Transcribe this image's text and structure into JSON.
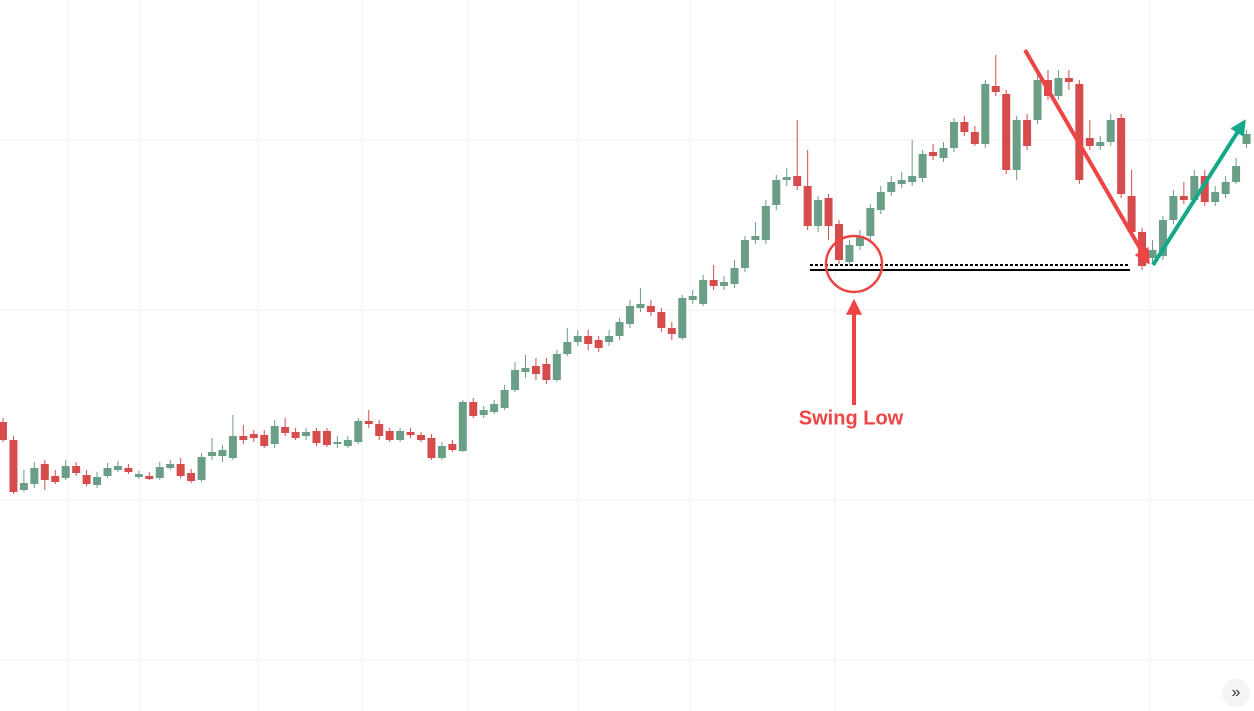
{
  "chart_data": {
    "type": "candlestick",
    "up_color": "#6a9e86",
    "down_color": "#d64b4b",
    "ylim": [
      0,
      711
    ],
    "categories": [
      null,
      null,
      null,
      null,
      null,
      null,
      null,
      null,
      null,
      null,
      null,
      null,
      null,
      null,
      null,
      null,
      null,
      null,
      null,
      null,
      null,
      null,
      null,
      null,
      null,
      null,
      null,
      null,
      null,
      null,
      null,
      null,
      null,
      null,
      null,
      null,
      null,
      null,
      null,
      null,
      null,
      null,
      null,
      null,
      null,
      null,
      null,
      null,
      null,
      null,
      null,
      null,
      null,
      null,
      null,
      null,
      null,
      null,
      null,
      null,
      null,
      null,
      null,
      null,
      null,
      null,
      null,
      null,
      null,
      null,
      null,
      null,
      null,
      null,
      null,
      null,
      null,
      null,
      null,
      null,
      null,
      null,
      null,
      null,
      null,
      null,
      null,
      null,
      null,
      null,
      null,
      null,
      null,
      null,
      null,
      null,
      null,
      null,
      null,
      null,
      null,
      null,
      null,
      null,
      null,
      null,
      null,
      null,
      null,
      null,
      null,
      null,
      null,
      null,
      null,
      null,
      null,
      null,
      null,
      null
    ],
    "open": [
      289,
      271,
      221,
      227,
      247,
      235,
      233,
      245,
      236,
      226,
      235,
      241,
      243,
      234,
      235,
      233,
      243,
      247,
      238,
      231,
      255,
      255,
      253,
      275,
      277,
      276,
      267,
      284,
      279,
      275,
      280,
      280,
      267,
      265,
      269,
      290,
      287,
      280,
      271,
      279,
      276,
      273,
      253,
      267,
      260,
      309,
      296,
      299,
      303,
      321,
      339,
      345,
      347,
      331,
      357,
      369,
      375,
      371,
      369,
      375,
      387,
      403,
      405,
      399,
      383,
      373,
      411,
      407,
      431,
      425,
      427,
      443,
      471,
      471,
      506,
      531,
      535,
      525,
      485,
      513,
      487,
      449,
      465,
      475,
      501,
      519,
      527,
      529,
      533,
      559,
      553,
      563,
      589,
      579,
      567,
      625,
      617,
      541,
      591,
      591,
      631,
      615,
      633,
      627,
      573,
      565,
      569,
      593,
      515,
      479,
      453,
      455,
      491,
      515,
      511,
      535,
      509,
      517,
      529,
      567
    ],
    "high": [
      293,
      275,
      241,
      249,
      251,
      241,
      251,
      249,
      241,
      239,
      248,
      250,
      247,
      240,
      239,
      249,
      251,
      253,
      242,
      258,
      273,
      266,
      296,
      286,
      281,
      281,
      291,
      293,
      283,
      283,
      283,
      283,
      275,
      275,
      293,
      301,
      291,
      283,
      283,
      283,
      279,
      277,
      269,
      271,
      311,
      313,
      305,
      311,
      326,
      349,
      356,
      353,
      353,
      361,
      383,
      381,
      381,
      375,
      381,
      393,
      411,
      423,
      411,
      403,
      389,
      416,
      421,
      436,
      446,
      435,
      451,
      475,
      489,
      511,
      536,
      543,
      591,
      561,
      515,
      517,
      491,
      471,
      481,
      507,
      525,
      535,
      539,
      571,
      561,
      567,
      569,
      593,
      595,
      585,
      631,
      656,
      621,
      595,
      597,
      637,
      641,
      641,
      641,
      631,
      591,
      575,
      597,
      597,
      541,
      483,
      471,
      495,
      521,
      529,
      541,
      541,
      525,
      535,
      553,
      581
    ],
    "low": [
      269,
      217,
      219,
      223,
      221,
      227,
      231,
      235,
      225,
      223,
      233,
      239,
      237,
      232,
      231,
      231,
      241,
      233,
      228,
      229,
      251,
      249,
      251,
      267,
      269,
      263,
      263,
      275,
      271,
      271,
      265,
      264,
      263,
      263,
      267,
      283,
      271,
      269,
      269,
      273,
      269,
      251,
      251,
      259,
      259,
      293,
      293,
      297,
      301,
      319,
      333,
      331,
      327,
      329,
      355,
      365,
      361,
      359,
      365,
      371,
      383,
      399,
      395,
      379,
      371,
      371,
      407,
      405,
      421,
      421,
      423,
      439,
      467,
      467,
      501,
      525,
      521,
      481,
      479,
      471,
      447,
      445,
      461,
      471,
      497,
      515,
      523,
      525,
      529,
      551,
      549,
      559,
      575,
      565,
      563,
      615,
      537,
      531,
      561,
      587,
      611,
      611,
      621,
      527,
      561,
      561,
      565,
      513,
      475,
      441,
      449,
      451,
      487,
      507,
      507,
      505,
      505,
      513,
      527,
      563
    ],
    "close": [
      271,
      219,
      228,
      243,
      231,
      229,
      245,
      238,
      227,
      234,
      243,
      245,
      239,
      237,
      232,
      244,
      247,
      235,
      230,
      254,
      259,
      261,
      275,
      271,
      273,
      265,
      285,
      278,
      273,
      279,
      268,
      266,
      269,
      271,
      290,
      287,
      275,
      271,
      280,
      276,
      271,
      253,
      265,
      261,
      309,
      295,
      301,
      307,
      321,
      341,
      343,
      337,
      331,
      357,
      369,
      375,
      367,
      363,
      375,
      389,
      405,
      407,
      399,
      383,
      377,
      413,
      415,
      431,
      425,
      429,
      443,
      471,
      475,
      505,
      531,
      534,
      525,
      485,
      511,
      485,
      451,
      466,
      475,
      503,
      519,
      529,
      531,
      535,
      557,
      555,
      563,
      589,
      579,
      567,
      627,
      619,
      541,
      591,
      565,
      631,
      615,
      633,
      629,
      531,
      565,
      569,
      591,
      517,
      479,
      445,
      461,
      491,
      515,
      511,
      535,
      509,
      519,
      529,
      545,
      577
    ],
    "annotations": [
      "Swing Low"
    ]
  },
  "ui": {
    "scroll_button": "»"
  }
}
